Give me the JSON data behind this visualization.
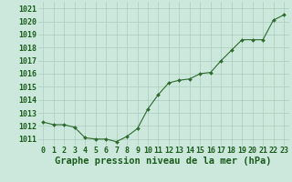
{
  "x": [
    0,
    1,
    2,
    3,
    4,
    5,
    6,
    7,
    8,
    9,
    10,
    11,
    12,
    13,
    14,
    15,
    16,
    17,
    18,
    19,
    20,
    21,
    22,
    23
  ],
  "y": [
    1012.3,
    1012.1,
    1012.1,
    1011.9,
    1011.1,
    1011.0,
    1011.0,
    1010.8,
    1011.2,
    1011.8,
    1013.3,
    1014.4,
    1015.3,
    1015.5,
    1015.6,
    1016.0,
    1016.1,
    1017.0,
    1017.8,
    1018.6,
    1018.6,
    1018.6,
    1020.1,
    1020.5
  ],
  "line_color": "#2d6a2d",
  "marker_color": "#2d6a2d",
  "bg_plot": "#cce8dd",
  "bg_figure": "#cce8dd",
  "grid_color": "#aaccbb",
  "xlabel": "Graphe pression niveau de la mer (hPa)",
  "xlabel_color": "#1a5c1a",
  "ylabel_ticks": [
    1011,
    1012,
    1013,
    1014,
    1015,
    1016,
    1017,
    1018,
    1019,
    1020,
    1021
  ],
  "ylim": [
    1010.5,
    1021.5
  ],
  "xlim": [
    -0.5,
    23.5
  ],
  "tick_color": "#1a5c1a",
  "xlabel_fontsize": 7.5,
  "tick_fontsize": 6.0
}
